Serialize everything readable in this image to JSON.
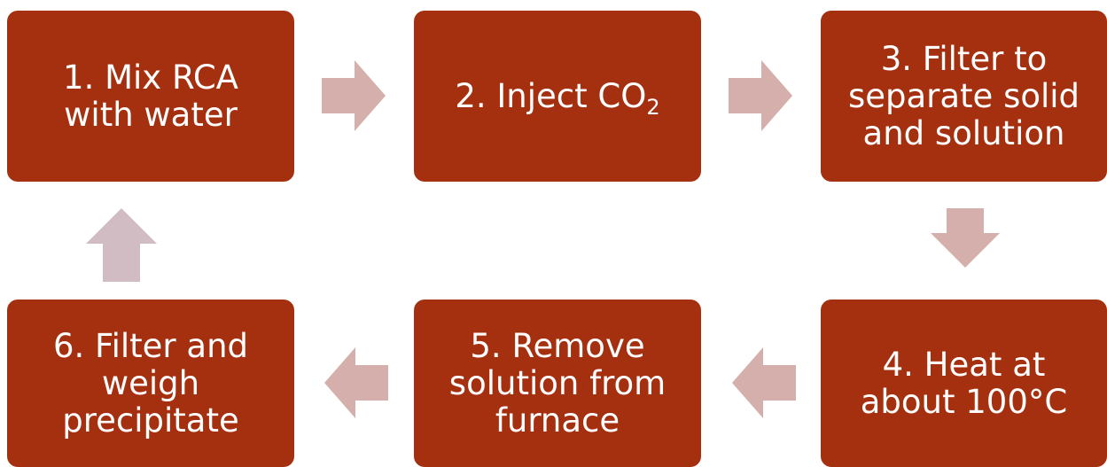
{
  "nodes": [
    {
      "lines": [
        "1. Mix RCA",
        "with water"
      ]
    },
    {
      "lines": [
        "2. Inject CO"
      ],
      "subscript": "2"
    },
    {
      "lines": [
        "3. Filter to",
        "separate solid",
        "and solution"
      ]
    },
    {
      "lines": [
        "4. Heat at",
        "about 100°C"
      ]
    },
    {
      "lines": [
        "5. Remove",
        "solution from",
        "furnace"
      ]
    },
    {
      "lines": [
        "6. Filter and",
        "weigh",
        "precipitate"
      ]
    }
  ]
}
